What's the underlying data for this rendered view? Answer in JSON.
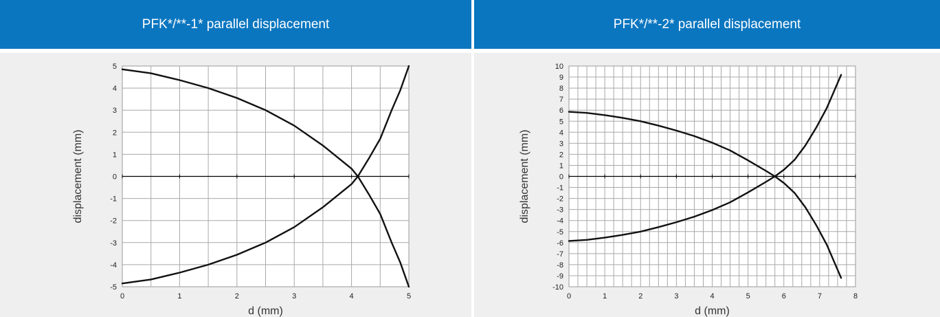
{
  "chart_data": [
    {
      "type": "line",
      "title": "PFK*/**-1* parallel displacement",
      "xlabel": "d (mm)",
      "ylabel": "displacement (mm)",
      "xlim": [
        0,
        5
      ],
      "ylim": [
        -5,
        5
      ],
      "xticks": [
        "0",
        "1",
        "2",
        "3",
        "4",
        "5"
      ],
      "yticks": [
        "5",
        "4",
        "3",
        "2",
        "1",
        "0",
        "-1",
        "-2",
        "-3",
        "-4",
        "-5"
      ],
      "grid": true,
      "series": [
        {
          "x": [
            0,
            0.5,
            1,
            1.5,
            2,
            2.5,
            3,
            3.5,
            4,
            4.11
          ],
          "y": [
            4.85,
            4.67,
            4.36,
            4.0,
            3.55,
            3.0,
            2.3,
            1.4,
            0.35,
            0
          ]
        },
        {
          "x": [
            0,
            0.5,
            1,
            1.5,
            2,
            2.5,
            3,
            3.5,
            4,
            4.11
          ],
          "y": [
            -4.85,
            -4.67,
            -4.36,
            -4.0,
            -3.55,
            -3.0,
            -2.3,
            -1.4,
            -0.35,
            0
          ]
        },
        {
          "x": [
            4.11,
            4.3,
            4.5,
            4.7,
            4.85,
            5.0
          ],
          "y": [
            0,
            0.8,
            1.7,
            3.0,
            3.9,
            5.0
          ]
        },
        {
          "x": [
            4.11,
            4.3,
            4.5,
            4.7,
            4.85,
            5.0
          ],
          "y": [
            0,
            -0.8,
            -1.7,
            -3.0,
            -3.9,
            -5.0
          ]
        }
      ]
    },
    {
      "type": "line",
      "title": "PFK*/**-2* parallel displacement",
      "xlabel": "d (mm)",
      "ylabel": "displacement (mm)",
      "xlim": [
        0,
        8
      ],
      "ylim": [
        -10,
        10
      ],
      "xticks": [
        "0",
        "1",
        "2",
        "3",
        "4",
        "5",
        "6",
        "7",
        "8"
      ],
      "yticks": [
        "10",
        "9",
        "8",
        "7",
        "6",
        "5",
        "4",
        "3",
        "2",
        "1",
        "0",
        "-1",
        "-2",
        "-3",
        "-4",
        "-5",
        "-6",
        "-7",
        "-8",
        "-9",
        "-10"
      ],
      "grid": true,
      "series": [
        {
          "x": [
            0,
            0.5,
            1,
            1.5,
            2,
            2.5,
            3,
            3.5,
            4,
            4.5,
            5,
            5.5,
            5.75
          ],
          "y": [
            5.85,
            5.75,
            5.55,
            5.3,
            5.0,
            4.6,
            4.15,
            3.65,
            3.05,
            2.35,
            1.45,
            0.5,
            0
          ]
        },
        {
          "x": [
            0,
            0.5,
            1,
            1.5,
            2,
            2.5,
            3,
            3.5,
            4,
            4.5,
            5,
            5.5,
            5.75
          ],
          "y": [
            -5.85,
            -5.75,
            -5.55,
            -5.3,
            -5.0,
            -4.6,
            -4.15,
            -3.65,
            -3.05,
            -2.35,
            -1.45,
            -0.5,
            0
          ]
        },
        {
          "x": [
            5.75,
            6.0,
            6.3,
            6.6,
            6.9,
            7.2,
            7.6
          ],
          "y": [
            0,
            0.6,
            1.5,
            2.8,
            4.4,
            6.2,
            9.2
          ]
        },
        {
          "x": [
            5.75,
            6.0,
            6.3,
            6.6,
            6.9,
            7.2,
            7.6
          ],
          "y": [
            0,
            -0.6,
            -1.5,
            -2.8,
            -4.4,
            -6.2,
            -9.2
          ]
        }
      ]
    }
  ]
}
